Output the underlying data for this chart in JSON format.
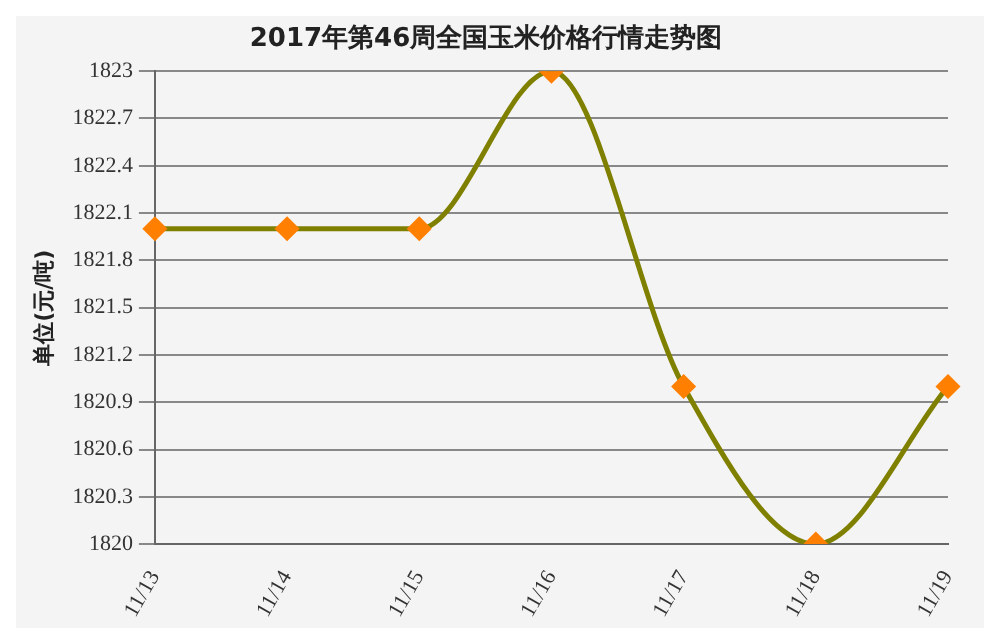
{
  "chart_data": {
    "type": "line",
    "title": "2017年第46周全国玉米价格行情走势图",
    "ylabel": "单位(元/吨)",
    "categories": [
      "11/13",
      "11/14",
      "11/15",
      "11/16",
      "11/17",
      "11/18",
      "11/19"
    ],
    "series": [
      {
        "color": "#808000",
        "values": [
          1822,
          1822,
          1822,
          1823,
          1821,
          1820,
          1821
        ]
      }
    ],
    "ylim": [
      1820,
      1823
    ],
    "yticks": [
      1820,
      1820.3,
      1820.6,
      1820.9,
      1821.2,
      1821.5,
      1821.8,
      1822.1,
      1822.4,
      1822.7,
      1823
    ],
    "grid": "y",
    "legend": false,
    "marker": "diamond",
    "line_style": "solid"
  }
}
